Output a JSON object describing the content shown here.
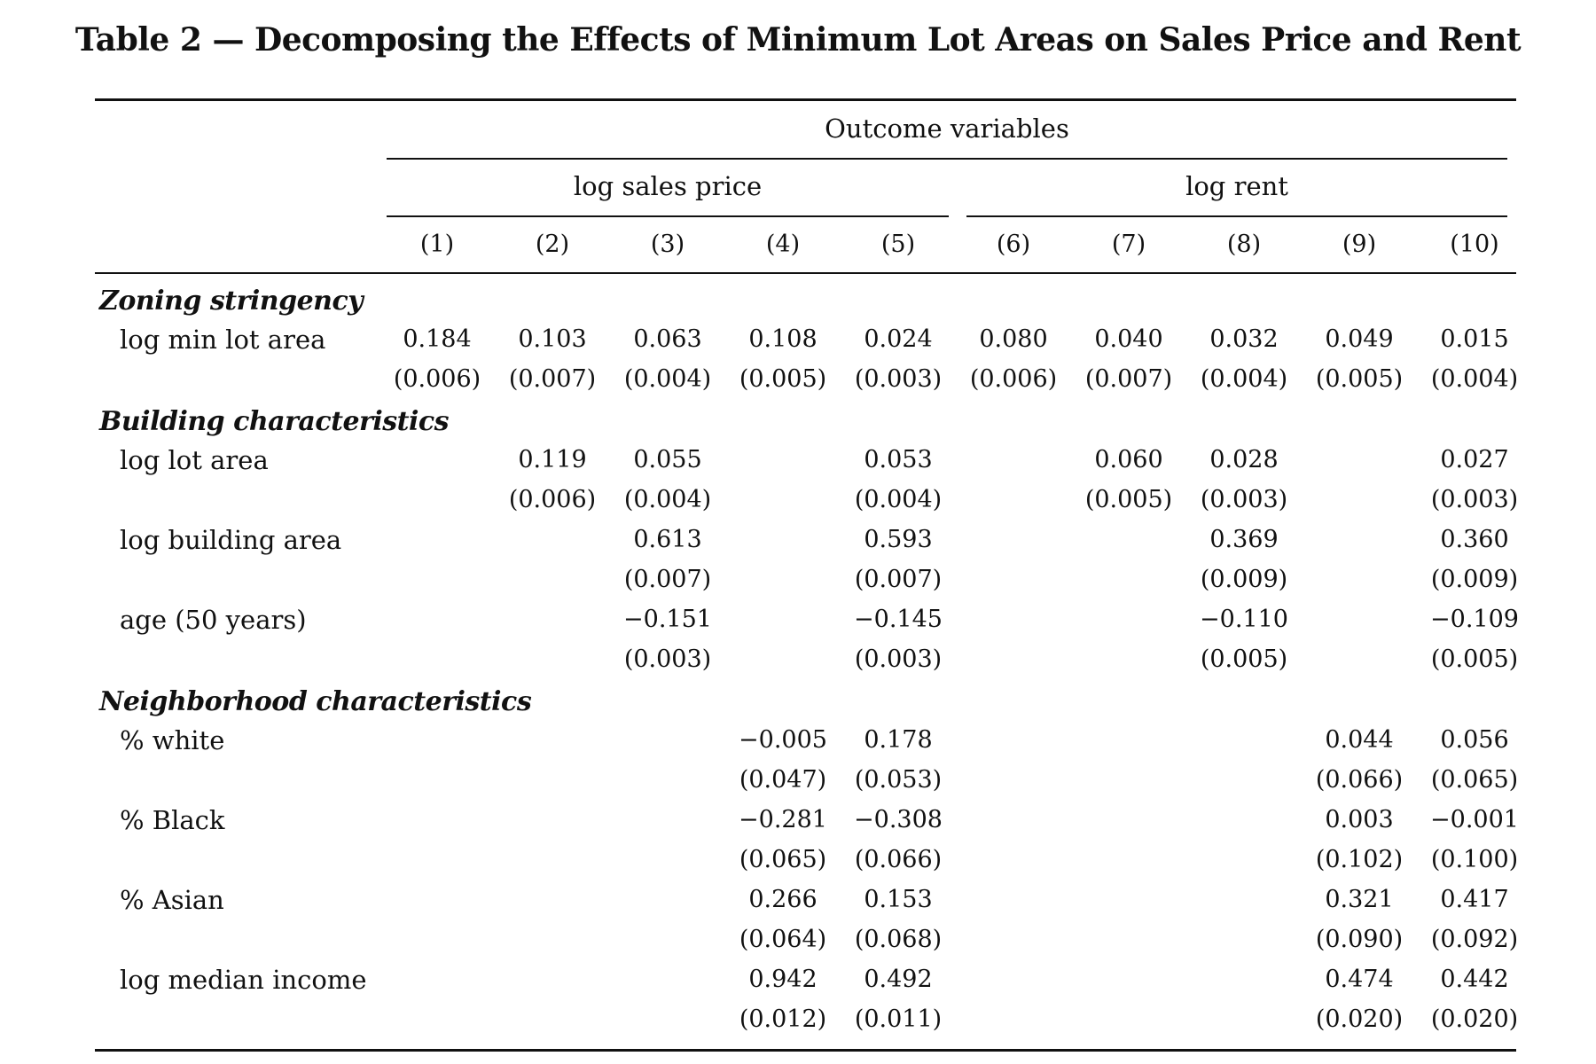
{
  "title": "Table 2 — Decomposing the Effects of Minimum Lot Areas on Sales Price and Rent",
  "header": {
    "outcome": "Outcome variables",
    "group1": "log sales price",
    "group2": "log rent",
    "columns": [
      "(1)",
      "(2)",
      "(3)",
      "(4)",
      "(5)",
      "(6)",
      "(7)",
      "(8)",
      "(9)",
      "(10)"
    ]
  },
  "sections": [
    {
      "title": "Zoning stringency",
      "rows": [
        {
          "label": "log min lot area",
          "coef": [
            "0.184",
            "0.103",
            "0.063",
            "0.108",
            "0.024",
            "0.080",
            "0.040",
            "0.032",
            "0.049",
            "0.015"
          ],
          "se": [
            "(0.006)",
            "(0.007)",
            "(0.004)",
            "(0.005)",
            "(0.003)",
            "(0.006)",
            "(0.007)",
            "(0.004)",
            "(0.005)",
            "(0.004)"
          ]
        }
      ]
    },
    {
      "title": "Building characteristics",
      "rows": [
        {
          "label": "log lot area",
          "coef": [
            "",
            "0.119",
            "0.055",
            "",
            "0.053",
            "",
            "0.060",
            "0.028",
            "",
            "0.027"
          ],
          "se": [
            "",
            "(0.006)",
            "(0.004)",
            "",
            "(0.004)",
            "",
            "(0.005)",
            "(0.003)",
            "",
            "(0.003)"
          ]
        },
        {
          "label": "log building area",
          "coef": [
            "",
            "",
            "0.613",
            "",
            "0.593",
            "",
            "",
            "0.369",
            "",
            "0.360"
          ],
          "se": [
            "",
            "",
            "(0.007)",
            "",
            "(0.007)",
            "",
            "",
            "(0.009)",
            "",
            "(0.009)"
          ]
        },
        {
          "label": "age (50 years)",
          "coef": [
            "",
            "",
            "−0.151",
            "",
            "−0.145",
            "",
            "",
            "−0.110",
            "",
            "−0.109"
          ],
          "se": [
            "",
            "",
            "(0.003)",
            "",
            "(0.003)",
            "",
            "",
            "(0.005)",
            "",
            "(0.005)"
          ]
        }
      ]
    },
    {
      "title": "Neighborhood characteristics",
      "rows": [
        {
          "label": "% white",
          "coef": [
            "",
            "",
            "",
            "−0.005",
            "0.178",
            "",
            "",
            "",
            "0.044",
            "0.056"
          ],
          "se": [
            "",
            "",
            "",
            "(0.047)",
            "(0.053)",
            "",
            "",
            "",
            "(0.066)",
            "(0.065)"
          ]
        },
        {
          "label": "% Black",
          "coef": [
            "",
            "",
            "",
            "−0.281",
            "−0.308",
            "",
            "",
            "",
            "0.003",
            "−0.001"
          ],
          "se": [
            "",
            "",
            "",
            "(0.065)",
            "(0.066)",
            "",
            "",
            "",
            "(0.102)",
            "(0.100)"
          ]
        },
        {
          "label": "% Asian",
          "coef": [
            "",
            "",
            "",
            "0.266",
            "0.153",
            "",
            "",
            "",
            "0.321",
            "0.417"
          ],
          "se": [
            "",
            "",
            "",
            "(0.064)",
            "(0.068)",
            "",
            "",
            "",
            "(0.090)",
            "(0.092)"
          ]
        },
        {
          "label": "log median income",
          "coef": [
            "",
            "",
            "",
            "0.942",
            "0.492",
            "",
            "",
            "",
            "0.474",
            "0.442"
          ],
          "se": [
            "",
            "",
            "",
            "(0.012)",
            "(0.011)",
            "",
            "",
            "",
            "(0.020)",
            "(0.020)"
          ]
        }
      ]
    }
  ]
}
